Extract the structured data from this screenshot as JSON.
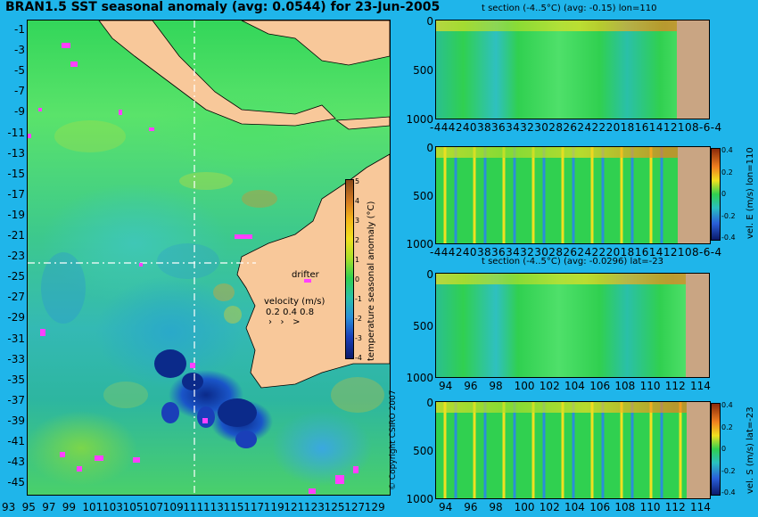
{
  "title": "BRAN1.5 SST seasonal anomaly (avg: 0.0544) for 23-Jun-2005",
  "map": {
    "lat_ticks": [
      "-1",
      "-3",
      "-5",
      "-7",
      "-9",
      "-11",
      "-13",
      "-15",
      "-17",
      "-19",
      "-21",
      "-23",
      "-25",
      "-27",
      "-29",
      "-31",
      "-33",
      "-35",
      "-37",
      "-39",
      "-41",
      "-43",
      "-45"
    ],
    "lon_ticks": [
      "93",
      "95",
      "97",
      "99",
      "101",
      "103",
      "105",
      "107",
      "109",
      "111",
      "113",
      "115",
      "117",
      "119",
      "121",
      "123",
      "125",
      "127",
      "129"
    ],
    "colorbar": {
      "label": "temperature seasonal anomaly (°C)",
      "ticks": [
        "5",
        "4",
        "3",
        "2",
        "1",
        "0",
        "-1",
        "-2",
        "-3",
        "-4"
      ],
      "range": [
        -4,
        5
      ]
    },
    "drifter_label": "drifter",
    "velocity_label": "velocity (m/s)",
    "velocity_scale": "0.2 0.4 0.8",
    "copyright": "© Copyright CSIRO 2007",
    "colors": {
      "land": "#f8c89a",
      "ocean_mean": "#39c97a",
      "cold": "#0b2a8a",
      "warm": "#f0e020",
      "drifter": "#ff40ff",
      "section_line": "#ffffff"
    }
  },
  "panels": [
    {
      "id": "t-section-lon110",
      "title": "t section (-4..5°C) (avg: -0.15) lon=110",
      "depth_ticks": [
        "0",
        "500",
        "1000"
      ],
      "x_ticks": [
        "-44",
        "42",
        "40",
        "38",
        "36",
        "34",
        "32",
        "30",
        "28",
        "26",
        "24",
        "22",
        "20",
        "18",
        "16",
        "14",
        "12",
        "10",
        "-8",
        "-6",
        "-4"
      ],
      "x_text": "-4442403836343230282624222018161412108-6-4",
      "colorbar": false
    },
    {
      "id": "vel-e-lon110",
      "title": "",
      "side_label": "vel. E (m/s) lon=110",
      "depth_ticks": [
        "0",
        "500",
        "1000"
      ],
      "x_text": "-4442403836343230282624222018161412108-6-4",
      "colorbar": true,
      "cb_ticks": [
        "0.4",
        "0.2",
        "0",
        "-0.2",
        "-0.4"
      ]
    },
    {
      "id": "t-section-lat23",
      "title": "t section (-4..5°C) (avg: -0.0296) lat=-23",
      "depth_ticks": [
        "0",
        "500",
        "1000"
      ],
      "x_ticks": [
        "94",
        "96",
        "98",
        "100",
        "102",
        "104",
        "106",
        "108",
        "110",
        "112",
        "114"
      ],
      "colorbar": false
    },
    {
      "id": "vel-s-lat23",
      "title": "",
      "side_label": "vel. S (m/s) lat=-23",
      "depth_ticks": [
        "0",
        "500",
        "1000"
      ],
      "x_ticks": [
        "94",
        "96",
        "98",
        "100",
        "102",
        "104",
        "106",
        "108",
        "110",
        "112",
        "114"
      ],
      "colorbar": true,
      "cb_ticks": [
        "0.4",
        "0.2",
        "0",
        "-0.2",
        "-0.4"
      ]
    }
  ]
}
